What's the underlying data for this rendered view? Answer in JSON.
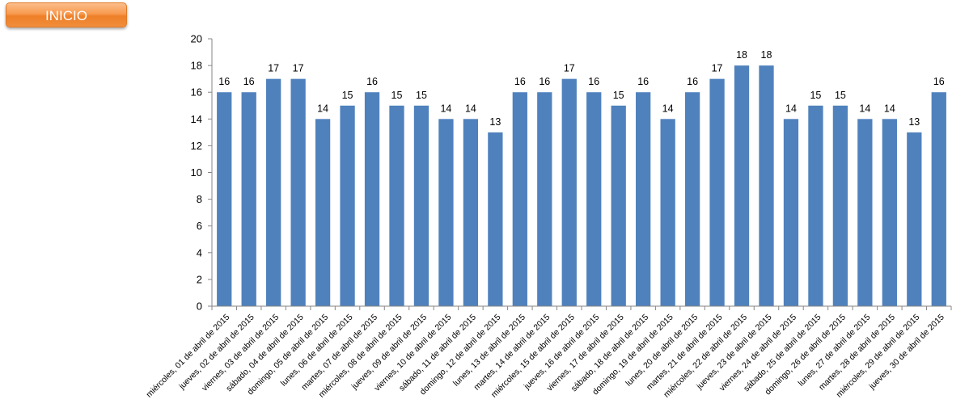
{
  "header": {
    "inicio_label": "INICIO"
  },
  "colors": {
    "bar": "#4f81bd",
    "axis": "#868686",
    "button": "#f08d3c"
  },
  "chart_data": {
    "type": "bar",
    "title": "",
    "xlabel": "",
    "ylabel": "",
    "ylim": [
      0,
      20
    ],
    "yticks": [
      0,
      2,
      4,
      6,
      8,
      10,
      12,
      14,
      16,
      18,
      20
    ],
    "grid": false,
    "legend": "none",
    "data_labels": true,
    "categories": [
      "miércoles, 01 de abril de 2015",
      "jueves, 02 de abril de 2015",
      "viernes, 03 de abril de 2015",
      "sábado, 04 de abril de 2015",
      "domingo, 05 de abril de 2015",
      "lunes, 06 de abril de 2015",
      "martes, 07 de abril de 2015",
      "miércoles, 08 de abril de 2015",
      "jueves, 09 de abril de 2015",
      "viernes, 10 de abril de 2015",
      "sábado, 11 de abril de 2015",
      "domingo, 12 de abril de 2015",
      "lunes, 13 de abril de 2015",
      "martes, 14 de abril de 2015",
      "miércoles, 15 de abril de 2015",
      "jueves, 16 de abril de 2015",
      "viernes, 17 de abril de 2015",
      "sábado, 18 de abril de 2015",
      "domingo, 19 de abril de 2015",
      "lunes, 20 de abril de 2015",
      "martes, 21 de abril de 2015",
      "miércoles, 22 de abril de 2015",
      "jueves, 23 de abril de 2015",
      "viernes, 24 de abril de 2015",
      "sábado, 25 de abril de 2015",
      "domingo, 26 de abril de 2015",
      "lunes, 27 de abril de 2015",
      "martes, 28 de abril de 2015",
      "miércoles, 29 de abril de 2015",
      "jueves, 30 de abril de 2015"
    ],
    "values": [
      16,
      16,
      17,
      17,
      14,
      15,
      16,
      15,
      15,
      14,
      14,
      13,
      16,
      16,
      17,
      16,
      15,
      16,
      14,
      16,
      17,
      18,
      18,
      14,
      15,
      15,
      14,
      14,
      13,
      16
    ]
  }
}
